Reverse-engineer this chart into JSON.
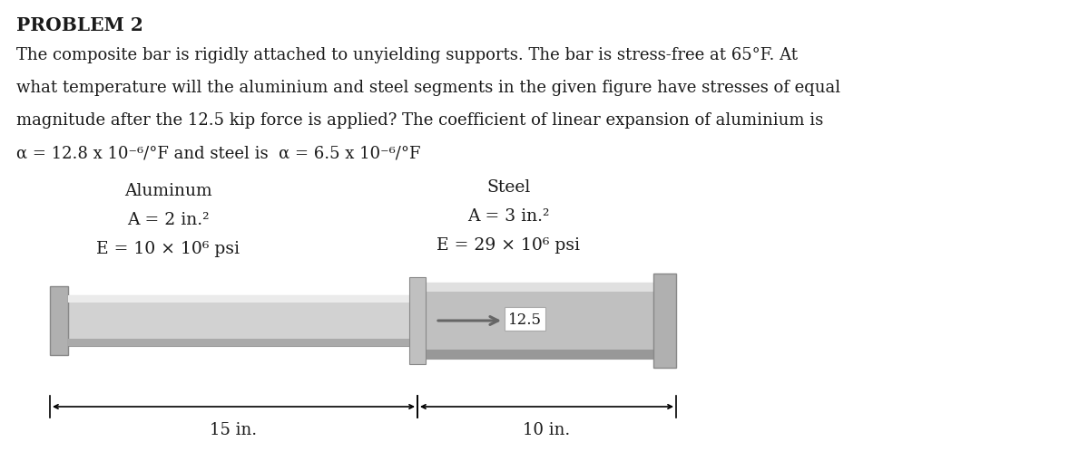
{
  "title": "PROBLEM 2",
  "line1": "The composite bar is rigidly attached to unyielding supports. The bar is stress-free at 65°F. At",
  "line2": "what temperature will the aluminium and steel segments in the given figure have stresses of equal",
  "line3": "magnitude after the 12.5 kip force is applied? The coefficient of linear expansion of aluminium is",
  "line4": "α = 12.8 x 10⁻⁶/°F and steel is  α = 6.5 x 10⁻⁶/°F",
  "al_label": "Aluminum",
  "al_A": "A = 2 in.²",
  "al_E": "E = 10 × 10⁶ psi",
  "st_label": "Steel",
  "st_A": "A = 3 in.²",
  "st_E": "E = 29 × 10⁶ psi",
  "force_label": "12.5",
  "dim_al": "15 in.",
  "dim_st": "10 in.",
  "bg_color": "#ffffff",
  "text_color": "#1a1a1a",
  "bar_al_fill": "#d2d2d2",
  "bar_al_top": "#ebebeb",
  "bar_al_bot": "#aaaaaa",
  "bar_st_fill": "#c0c0c0",
  "bar_st_top": "#e0e0e0",
  "bar_st_bot": "#989898",
  "wall_fill": "#b0b0b0",
  "wall_edge": "#888888",
  "arrow_color": "#666666"
}
